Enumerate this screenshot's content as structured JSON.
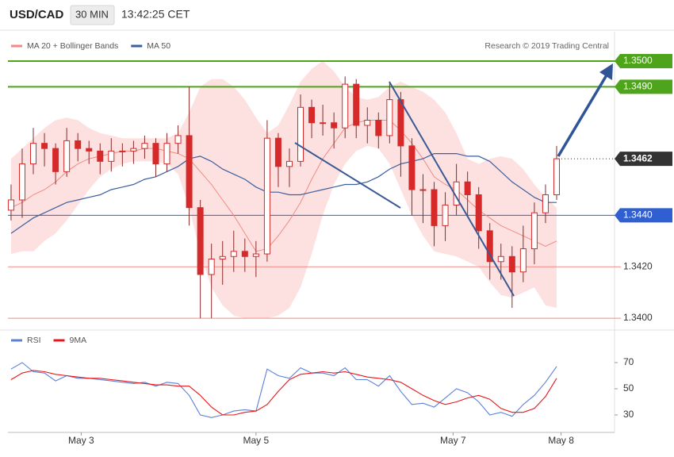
{
  "header": {
    "symbol": "USD/CAD",
    "timeframe": "30 MIN",
    "time": "13:42:25 CET"
  },
  "credit": "Research © 2019 Trading Central",
  "chart_data": [
    {
      "type": "candlestick",
      "ylim": [
        1.33957,
        1.35114
      ],
      "xlim": [
        -0.28,
        54.2
      ],
      "candle_color": "#d62a2a",
      "open": [
        1.3442,
        1.3446,
        1.346,
        1.3468,
        1.3466,
        1.3457,
        1.3469,
        1.3466,
        1.3465,
        1.3461,
        1.3465,
        1.3465,
        1.3466,
        1.3468,
        1.346,
        1.3468,
        1.3471,
        1.3443,
        1.3417,
        1.3423,
        1.3424,
        1.3426,
        1.3424,
        1.3425,
        1.347,
        1.3459,
        1.3461,
        1.3482,
        1.3476,
        1.3476,
        1.3474,
        1.3491,
        1.3475,
        1.3477,
        1.3471,
        1.3485,
        1.3467,
        1.345,
        1.345,
        1.3436,
        1.3444,
        1.3453,
        1.3448,
        1.3434,
        1.3422,
        1.3424,
        1.3418,
        1.3427,
        1.3441,
        1.3448
      ],
      "high": [
        1.3452,
        1.3466,
        1.3474,
        1.3472,
        1.3468,
        1.3474,
        1.3472,
        1.3469,
        1.3468,
        1.347,
        1.3468,
        1.3469,
        1.3471,
        1.347,
        1.3472,
        1.3475,
        1.349,
        1.3446,
        1.3429,
        1.343,
        1.3434,
        1.3431,
        1.343,
        1.3477,
        1.3472,
        1.3466,
        1.3487,
        1.3485,
        1.3483,
        1.348,
        1.3494,
        1.3493,
        1.3482,
        1.348,
        1.3492,
        1.3488,
        1.347,
        1.3456,
        1.3453,
        1.3449,
        1.346,
        1.3457,
        1.3451,
        1.3437,
        1.3429,
        1.3428,
        1.3436,
        1.3445,
        1.3452,
        1.3467
      ],
      "low": [
        1.3438,
        1.3439,
        1.3456,
        1.3459,
        1.3452,
        1.3455,
        1.3461,
        1.346,
        1.3456,
        1.3457,
        1.3459,
        1.346,
        1.3462,
        1.3455,
        1.3457,
        1.3464,
        1.3436,
        1.34,
        1.34,
        1.3413,
        1.3418,
        1.3418,
        1.3416,
        1.3422,
        1.3451,
        1.3451,
        1.3459,
        1.347,
        1.3471,
        1.3466,
        1.347,
        1.347,
        1.3468,
        1.3466,
        1.3468,
        1.3455,
        1.344,
        1.3437,
        1.3428,
        1.343,
        1.344,
        1.344,
        1.3427,
        1.3415,
        1.3415,
        1.3404,
        1.3414,
        1.3421,
        1.3437,
        1.3446
      ],
      "close": [
        1.3446,
        1.346,
        1.3468,
        1.3466,
        1.3457,
        1.3469,
        1.3466,
        1.3465,
        1.3461,
        1.3465,
        1.3465,
        1.3466,
        1.3468,
        1.346,
        1.3468,
        1.3471,
        1.3443,
        1.3417,
        1.3423,
        1.3424,
        1.3426,
        1.3424,
        1.3425,
        1.347,
        1.3459,
        1.3461,
        1.3482,
        1.3476,
        1.3476,
        1.3474,
        1.3491,
        1.3475,
        1.3477,
        1.3471,
        1.3485,
        1.3467,
        1.345,
        1.345,
        1.3436,
        1.3444,
        1.3453,
        1.3448,
        1.3434,
        1.3422,
        1.3424,
        1.3418,
        1.3427,
        1.3441,
        1.3448,
        1.3462
      ],
      "series": [
        {
          "name": "MA 20 + Bollinger Bands",
          "color": "#f08a84",
          "band_color": "#fde1e1",
          "values": [
            1.3443,
            1.3445,
            1.3448,
            1.345,
            1.3453,
            1.3457,
            1.346,
            1.3462,
            1.3463,
            1.3464,
            1.3465,
            1.3465,
            1.3466,
            1.3466,
            1.3465,
            1.3464,
            1.3462,
            1.3457,
            1.3452,
            1.3446,
            1.344,
            1.3433,
            1.3426,
            1.3427,
            1.3432,
            1.3438,
            1.3445,
            1.3454,
            1.3462,
            1.3468,
            1.3474,
            1.3476,
            1.3477,
            1.3477,
            1.3477,
            1.3473,
            1.3468,
            1.3462,
            1.3455,
            1.3452,
            1.345,
            1.3446,
            1.3442,
            1.3439,
            1.3436,
            1.3434,
            1.3432,
            1.343,
            1.3428,
            1.343
          ],
          "upper": [
            1.3462,
            1.3466,
            1.347,
            1.3474,
            1.3477,
            1.3478,
            1.3477,
            1.3474,
            1.3472,
            1.3471,
            1.347,
            1.347,
            1.347,
            1.347,
            1.347,
            1.3472,
            1.348,
            1.349,
            1.3493,
            1.3493,
            1.349,
            1.3485,
            1.3478,
            1.3472,
            1.3475,
            1.3483,
            1.3492,
            1.3497,
            1.35,
            1.3496,
            1.349,
            1.3486,
            1.3485,
            1.3486,
            1.349,
            1.3492,
            1.349,
            1.3488,
            1.3485,
            1.348,
            1.3472,
            1.3462,
            1.346,
            1.3462,
            1.3463,
            1.3462,
            1.3458,
            1.3452,
            1.3447,
            1.3443
          ],
          "lower": [
            1.3425,
            1.3426,
            1.3426,
            1.343,
            1.3433,
            1.3438,
            1.3444,
            1.345,
            1.3455,
            1.3458,
            1.346,
            1.3461,
            1.3461,
            1.3461,
            1.346,
            1.3456,
            1.3443,
            1.3425,
            1.3412,
            1.3405,
            1.3401,
            1.34,
            1.34,
            1.34,
            1.3401,
            1.3404,
            1.3412,
            1.3425,
            1.344,
            1.3452,
            1.346,
            1.3465,
            1.3467,
            1.3466,
            1.346,
            1.345,
            1.344,
            1.3432,
            1.3426,
            1.3425,
            1.3424,
            1.3422,
            1.342,
            1.3414,
            1.3409,
            1.3408,
            1.341,
            1.3412,
            1.3405,
            1.3404
          ]
        },
        {
          "name": "MA 50",
          "color": "#3d5f9e",
          "values": [
            1.3433,
            1.3436,
            1.3439,
            1.3441,
            1.3443,
            1.3445,
            1.3446,
            1.3447,
            1.3448,
            1.345,
            1.3451,
            1.3452,
            1.3454,
            1.3455,
            1.3457,
            1.3459,
            1.3462,
            1.3463,
            1.3461,
            1.3458,
            1.3456,
            1.3454,
            1.3451,
            1.3449,
            1.3449,
            1.3448,
            1.3448,
            1.3449,
            1.345,
            1.3451,
            1.3452,
            1.3452,
            1.3453,
            1.3455,
            1.3458,
            1.346,
            1.3461,
            1.3462,
            1.3464,
            1.3464,
            1.3464,
            1.3463,
            1.3463,
            1.3461,
            1.3457,
            1.3453,
            1.345,
            1.3447,
            1.3445,
            1.3445
          ]
        }
      ],
      "yticks": [
        {
          "value": 1.34,
          "label": "1.3400"
        },
        {
          "value": 1.342,
          "label": "1.3420"
        },
        {
          "value": 1.344,
          "label": "1.3440"
        },
        {
          "value": 1.3462,
          "label": "1.3462"
        },
        {
          "value": 1.349,
          "label": "1.3490"
        },
        {
          "value": 1.35,
          "label": "1.3500"
        }
      ],
      "level_colors": [
        "#f28b82",
        "#f28b82",
        "#2f5fd0",
        "#333333",
        "#4ea51c",
        "#4ea51c"
      ],
      "level_styles": [
        "plain",
        "plain",
        "badge",
        "current",
        "badge",
        "badge"
      ]
    },
    {
      "type": "line",
      "ylim": [
        16.7,
        92.4
      ],
      "xlim": [
        -0.28,
        54.2
      ],
      "series": [
        {
          "name": "RSI",
          "color": "#5b80d8",
          "values": [
            65,
            70,
            63,
            62,
            56,
            60,
            58,
            58,
            57,
            56,
            55,
            54,
            55,
            52,
            55,
            54,
            45,
            30,
            28,
            30,
            33,
            34,
            33,
            65,
            60,
            58,
            66,
            62,
            62,
            60,
            66,
            57,
            57,
            52,
            60,
            48,
            38,
            39,
            36,
            43,
            50,
            47,
            40,
            30,
            32,
            29,
            38,
            45,
            55,
            67
          ]
        },
        {
          "name": "9MA",
          "color": "#e8161b",
          "values": [
            57,
            62,
            64,
            63,
            61,
            60,
            59,
            58,
            58,
            57,
            56,
            55,
            54,
            53,
            53,
            52,
            52,
            45,
            36,
            30,
            30,
            32,
            33,
            38,
            48,
            57,
            61,
            62,
            63,
            62,
            63,
            61,
            59,
            58,
            57,
            55,
            50,
            45,
            41,
            38,
            40,
            43,
            45,
            42,
            35,
            32,
            32,
            35,
            44,
            58
          ]
        }
      ],
      "yticks": [
        30,
        50,
        70
      ],
      "xticks": [
        {
          "value": 6.3,
          "label": "May 3"
        },
        {
          "value": 22,
          "label": "May 5"
        },
        {
          "value": 39.7,
          "label": "May 7"
        },
        {
          "value": 49.4,
          "label": "May 8"
        }
      ]
    }
  ]
}
